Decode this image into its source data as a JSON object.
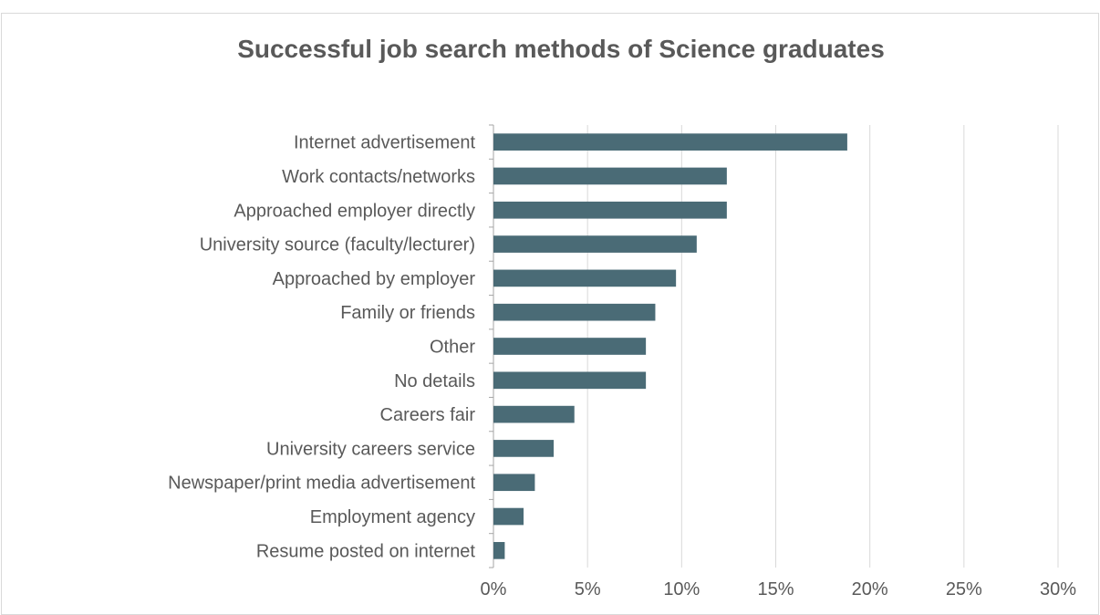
{
  "chart_data": {
    "type": "bar",
    "orientation": "horizontal",
    "title": "Successful job search methods of Science graduates",
    "xlabel": "",
    "ylabel": "",
    "categories": [
      "Internet advertisement",
      "Work contacts/networks",
      "Approached employer directly",
      "University source (faculty/lecturer)",
      "Approached by employer",
      "Family or friends",
      "Other",
      "No details",
      "Careers fair",
      "University careers service",
      "Newspaper/print media advertisement",
      "Employment agency",
      "Resume posted on internet"
    ],
    "values": [
      18.8,
      12.4,
      12.4,
      10.8,
      9.7,
      8.6,
      8.1,
      8.1,
      4.3,
      3.2,
      2.2,
      1.6,
      0.6
    ],
    "xlim": [
      0,
      30
    ],
    "xticks": [
      0,
      5,
      10,
      15,
      20,
      25,
      30
    ],
    "xtick_labels": [
      "0%",
      "5%",
      "10%",
      "15%",
      "20%",
      "25%",
      "30%"
    ],
    "grid": "vertical",
    "legend": "none",
    "bar_color": "#4a6b76",
    "grid_color": "#d9d9d9",
    "text_color": "#595959"
  }
}
